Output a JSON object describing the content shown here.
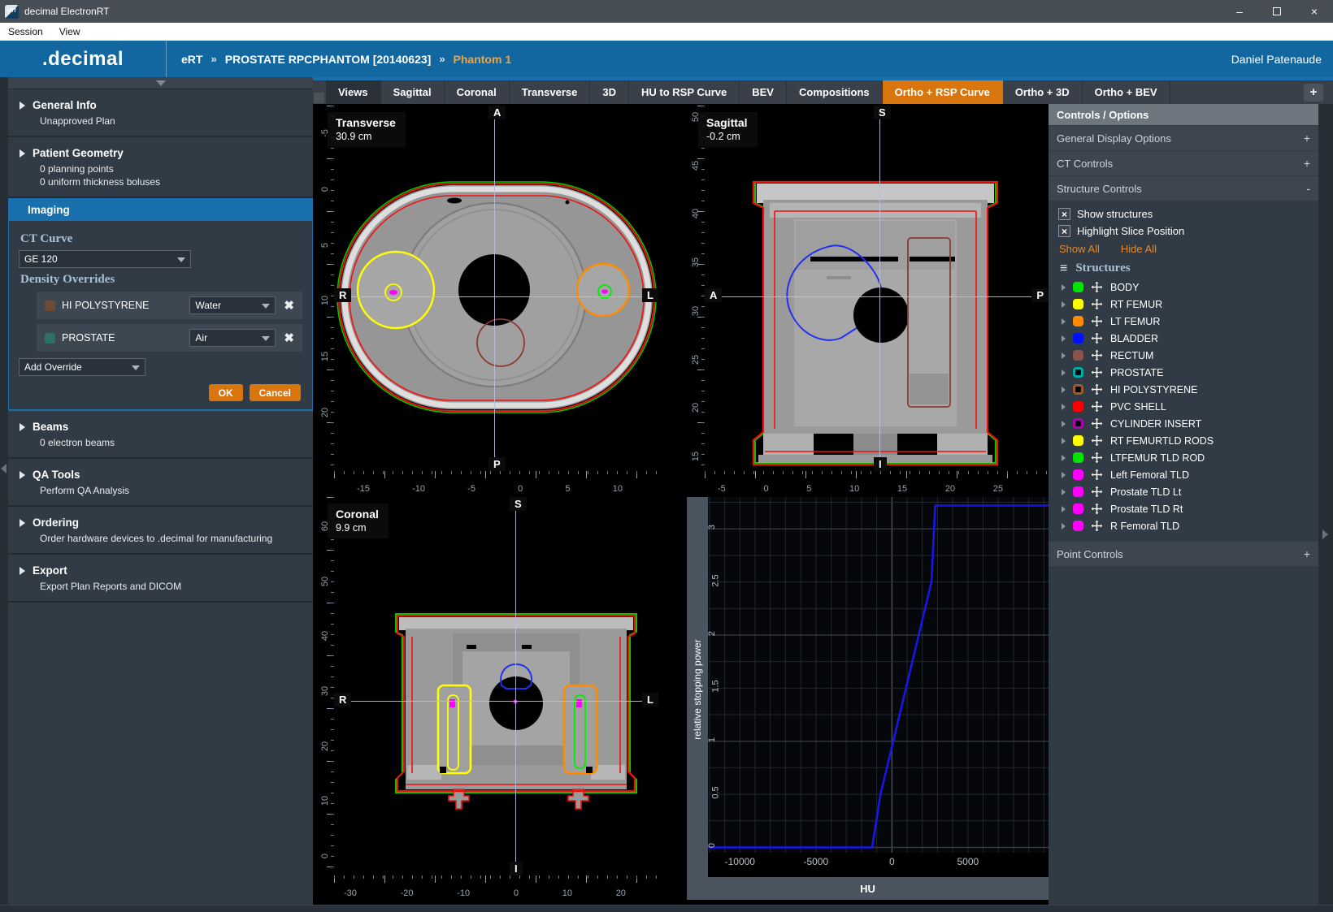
{
  "window": {
    "title": "decimal ElectronRT",
    "icon_text": "eRT",
    "minimize": "–",
    "close": "×"
  },
  "menu": {
    "items": [
      "Session",
      "View"
    ]
  },
  "header": {
    "logo": ".decimal",
    "crumb_app": "eRT",
    "crumb_sep1": "»",
    "crumb_patient": "PROSTATE RPCPHANTOM [20140623]",
    "crumb_sep2": "»",
    "crumb_plan": "Phantom 1",
    "user": "Daniel Patenaude"
  },
  "sidebar": {
    "sections": {
      "general_info": {
        "label": "General Info",
        "line1": "Unapproved Plan"
      },
      "patient_geometry": {
        "label": "Patient Geometry",
        "line1": "0 planning points",
        "line2": "0 uniform thickness boluses"
      },
      "imaging": {
        "label": "Imaging"
      },
      "beams": {
        "label": "Beams",
        "line1": "0 electron beams"
      },
      "qa_tools": {
        "label": "QA Tools",
        "line1": "Perform QA Analysis"
      },
      "ordering": {
        "label": "Ordering",
        "line1": "Order hardware devices to .decimal for manufacturing"
      },
      "export": {
        "label": "Export",
        "line1": "Export Plan Reports and DICOM"
      }
    },
    "imaging_panel": {
      "ct_curve_label": "CT Curve",
      "ct_curve_value": "GE 120",
      "density_overrides_label": "Density Overrides",
      "overrides": [
        {
          "name": "HI POLYSTYRENE",
          "value": "Water",
          "color": "#6e4a33"
        },
        {
          "name": "PROSTATE",
          "value": "Air",
          "color": "#2e6f69"
        }
      ],
      "add_override": "Add Override",
      "ok": "OK",
      "cancel": "Cancel"
    }
  },
  "tabs": {
    "items": [
      {
        "label": "Views",
        "state": "current"
      },
      {
        "label": "Sagittal",
        "state": "normal"
      },
      {
        "label": "Coronal",
        "state": "normal"
      },
      {
        "label": "Transverse",
        "state": "normal"
      },
      {
        "label": "3D",
        "state": "normal"
      },
      {
        "label": "HU to RSP Curve",
        "state": "normal"
      },
      {
        "label": "BEV",
        "state": "normal"
      },
      {
        "label": "Compositions",
        "state": "normal"
      },
      {
        "label": "Ortho + RSP Curve",
        "state": "selected"
      },
      {
        "label": "Ortho + 3D",
        "state": "normal"
      },
      {
        "label": "Ortho + BEV",
        "state": "normal"
      }
    ],
    "add_button": "+"
  },
  "views": {
    "transverse": {
      "title": "Transverse",
      "slice": "30.9 cm",
      "orient_top": "A",
      "orient_bottom": "P",
      "orient_left": "R",
      "orient_right": "L",
      "ruler_left": [
        "-5",
        "0",
        "5",
        "10",
        "15",
        "20"
      ],
      "ruler_bottom": [
        "-15",
        "-10",
        "-5",
        "0",
        "5",
        "10"
      ]
    },
    "sagittal": {
      "title": "Sagittal",
      "slice": "-0.2 cm",
      "orient_top": "S",
      "orient_bottom": "I",
      "orient_left": "A",
      "orient_right": "P",
      "ruler_left": [
        "50",
        "45",
        "40",
        "35",
        "30",
        "25",
        "20",
        "15"
      ],
      "ruler_bottom": [
        "-5",
        "0",
        "5",
        "10",
        "15",
        "20",
        "25"
      ]
    },
    "coronal": {
      "title": "Coronal",
      "slice": "9.9 cm",
      "orient_top": "S",
      "orient_bottom": "I",
      "orient_left": "R",
      "orient_right": "L",
      "ruler_left": [
        "60",
        "50",
        "40",
        "30",
        "20",
        "10",
        "0"
      ],
      "ruler_bottom": [
        "-30",
        "-20",
        "-10",
        "0",
        "10",
        "20"
      ]
    }
  },
  "panel": {
    "title": "Controls / Options",
    "general_display": {
      "label": "General Display Options",
      "toggle": "+"
    },
    "ct_controls": {
      "label": "CT Controls",
      "toggle": "+"
    },
    "structure_controls": {
      "label": "Structure Controls",
      "toggle": "-"
    },
    "show_structures": "Show structures",
    "highlight_slice": "Highlight Slice Position",
    "show_all": "Show All",
    "hide_all": "Hide All",
    "structures_title": "Structures",
    "structures": [
      {
        "label": "BODY",
        "color": "#00e400",
        "outline": false
      },
      {
        "label": "RT FEMUR",
        "color": "#ffff00",
        "outline": false
      },
      {
        "label": "LT FEMUR",
        "color": "#ff8b00",
        "outline": false
      },
      {
        "label": "BLADDER",
        "color": "#0010ff",
        "outline": false
      },
      {
        "label": "RECTUM",
        "color": "#8a544c",
        "outline": false
      },
      {
        "label": "PROSTATE",
        "color": "#00a8a8",
        "outline": true
      },
      {
        "label": "HI POLYSTYRENE",
        "color": "#a05a28",
        "outline": true
      },
      {
        "label": "PVC SHELL",
        "color": "#ff0000",
        "outline": false
      },
      {
        "label": "CYLINDER INSERT",
        "color": "#b400b4",
        "outline": true
      },
      {
        "label": "RT FEMURTLD RODS",
        "color": "#ffff00",
        "outline": false
      },
      {
        "label": "LTFEMUR TLD ROD",
        "color": "#00e400",
        "outline": false
      },
      {
        "label": "Left Femoral TLD",
        "color": "#ff00ff",
        "outline": false
      },
      {
        "label": "Prostate TLD Lt",
        "color": "#ff00ff",
        "outline": false
      },
      {
        "label": "Prostate TLD Rt",
        "color": "#ff00ff",
        "outline": false
      },
      {
        "label": "R Femoral TLD",
        "color": "#ff00ff",
        "outline": false
      }
    ],
    "point_controls": {
      "label": "Point Controls",
      "toggle": "+"
    }
  },
  "chart_data": {
    "type": "line",
    "title": "HU to RSP Curve",
    "xlabel": "HU",
    "ylabel": "relative stopping power",
    "xlim": [
      -12100,
      10300
    ],
    "ylim": [
      -0.05,
      3.3
    ],
    "xticks": [
      -10000,
      -5000,
      0,
      5000
    ],
    "yticks": [
      0,
      0.5,
      1,
      1.5,
      2,
      2.5,
      3
    ],
    "grid": {
      "x_minor": 1000,
      "y_minor": 0.25,
      "on": true
    },
    "legend": "none",
    "series": [
      {
        "name": "GE 120",
        "color": "#1616e8",
        "points": [
          [
            -12100,
            0
          ],
          [
            -1300,
            0
          ],
          [
            -750,
            0.5
          ],
          [
            2600,
            2.5
          ],
          [
            2850,
            3.22
          ],
          [
            10300,
            3.22
          ]
        ]
      }
    ]
  }
}
